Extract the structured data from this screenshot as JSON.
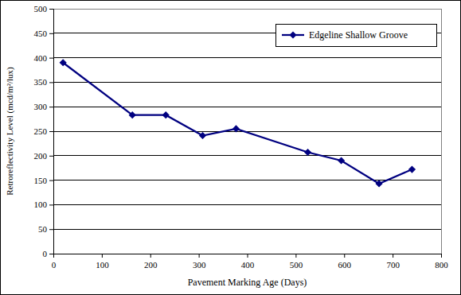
{
  "chart_data": {
    "type": "line",
    "x_label": "Pavement Marking Age (Days)",
    "y_label": "Retroreflectivity Level (mcd/m²/lux)",
    "x": [
      20,
      163,
      232,
      308,
      377,
      525,
      594,
      672,
      740
    ],
    "series": [
      {
        "name": "Edgeline Shallow Groove",
        "color": "#000080",
        "values": [
          390,
          283,
          283,
          241,
          255,
          207,
          190,
          143,
          172
        ],
        "marker": "diamond",
        "line_style": "solid"
      }
    ],
    "xlim": [
      0,
      800
    ],
    "xticks": [
      0,
      100,
      200,
      300,
      400,
      500,
      600,
      700,
      800
    ],
    "ylim": [
      0,
      500
    ],
    "yticks": [
      0,
      50,
      100,
      150,
      200,
      250,
      300,
      350,
      400,
      450,
      500
    ],
    "grid": true,
    "legend": "upper right"
  }
}
